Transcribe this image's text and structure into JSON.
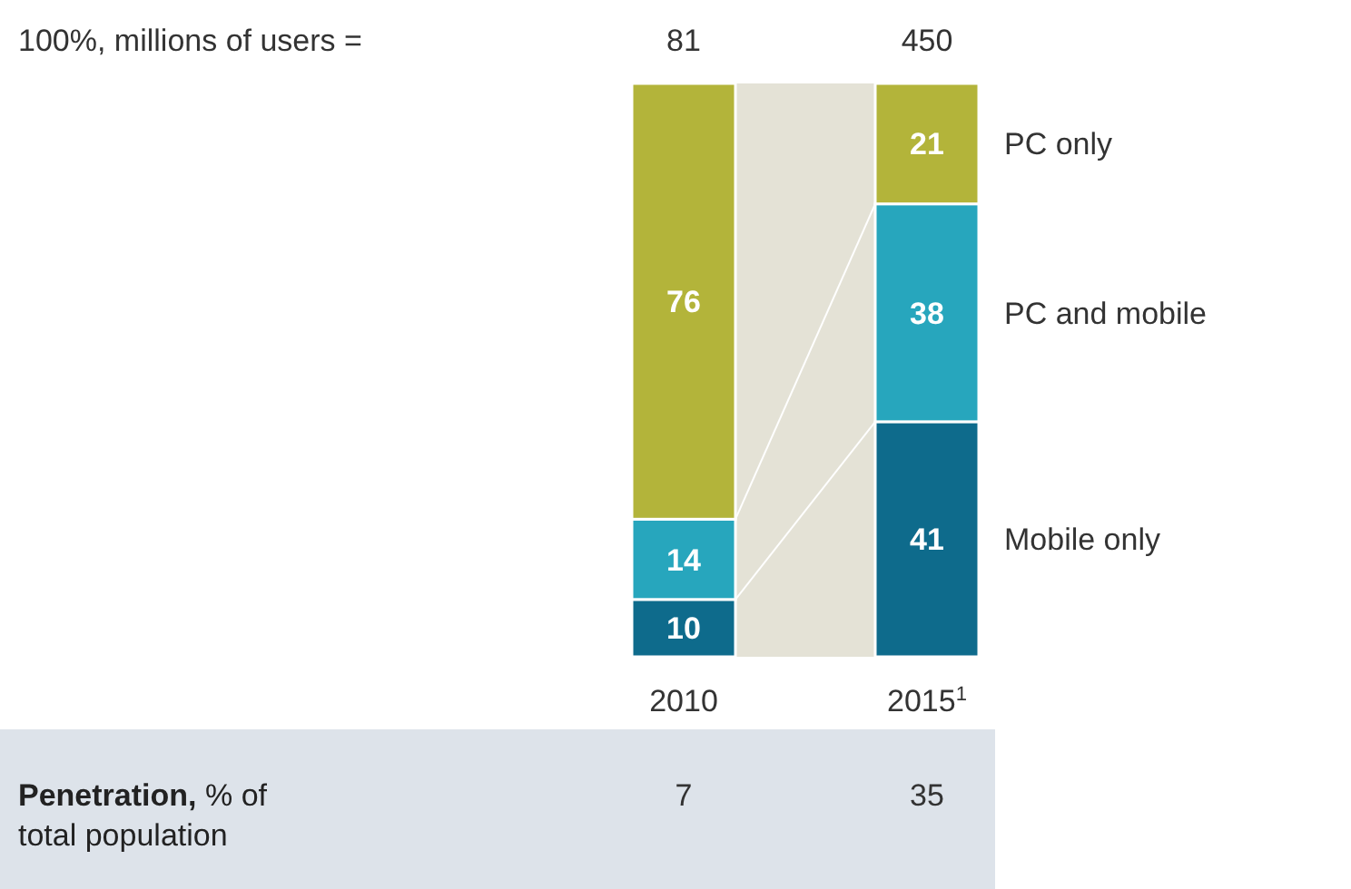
{
  "chart_data": {
    "type": "bar",
    "stacked": true,
    "categories": [
      "2010",
      "2015$^{1}$"
    ],
    "series": [
      {
        "name": "Mobile only",
        "color": "#0e6b8c",
        "values": [
          10,
          41
        ]
      },
      {
        "name": "PC and mobile",
        "color": "#27a6bd",
        "values": [
          14,
          38
        ]
      },
      {
        "name": "PC only",
        "color": "#b3b43a",
        "values": [
          76,
          21
        ]
      }
    ],
    "data_labels": true,
    "annotations": [
      "100%, millions of users =",
      "81",
      "450",
      "Penetration, % of total population",
      "7",
      "35"
    ]
  }
}
